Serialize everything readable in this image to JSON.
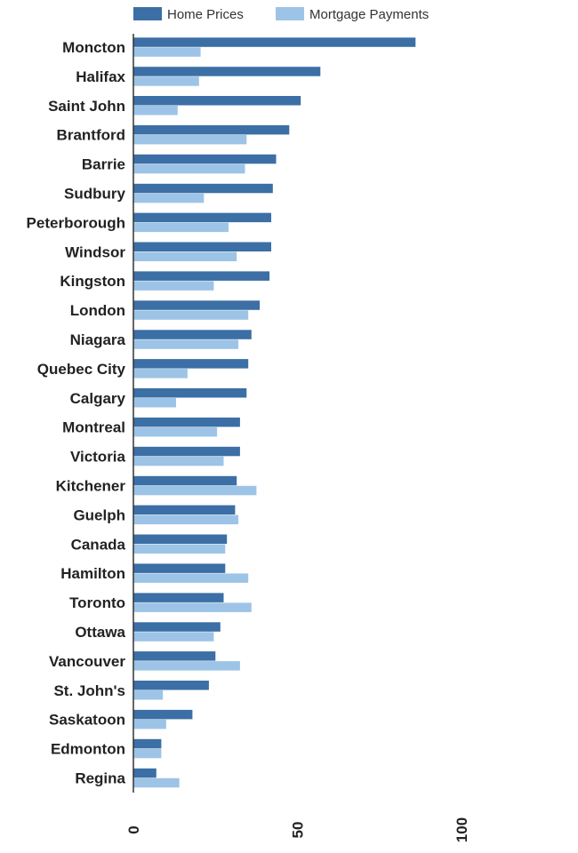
{
  "chart_data": {
    "type": "bar",
    "orientation": "horizontal",
    "categories": [
      "Moncton",
      "Halifax",
      "Saint John",
      "Brantford",
      "Barrie",
      "Sudbury",
      "Peterborough",
      "Windsor",
      "Kingston",
      "London",
      "Niagara",
      "Quebec City",
      "Calgary",
      "Montreal",
      "Victoria",
      "Kitchener",
      "Guelph",
      "Canada",
      "Hamilton",
      "Toronto",
      "Ottawa",
      "Vancouver",
      "St. John's",
      "Saskatoon",
      "Edmonton",
      "Regina"
    ],
    "series": [
      {
        "name": "Home Prices",
        "color": "#3b6fa5",
        "values": [
          86,
          57,
          51,
          47.5,
          43.5,
          42.5,
          42,
          42,
          41.5,
          38.5,
          36,
          35,
          34.5,
          32.5,
          32.5,
          31.5,
          31,
          28.5,
          28,
          27.5,
          26.5,
          25,
          23,
          18,
          8.5,
          7
        ]
      },
      {
        "name": "Mortgage Payments",
        "color": "#9dc4e6",
        "values": [
          20.5,
          20,
          13.5,
          34.5,
          34,
          21.5,
          29,
          31.5,
          24.5,
          35,
          32,
          16.5,
          13,
          25.5,
          27.5,
          37.5,
          32,
          28,
          35,
          36,
          24.5,
          32.5,
          9,
          10,
          8.5,
          14
        ]
      }
    ],
    "xlim": [
      0,
      130
    ],
    "xticks": [
      "0",
      "50",
      "100"
    ],
    "tick_values": [
      0,
      50,
      100
    ],
    "legend_position": "top",
    "grid": false,
    "title": "",
    "xlabel": "",
    "ylabel": ""
  }
}
